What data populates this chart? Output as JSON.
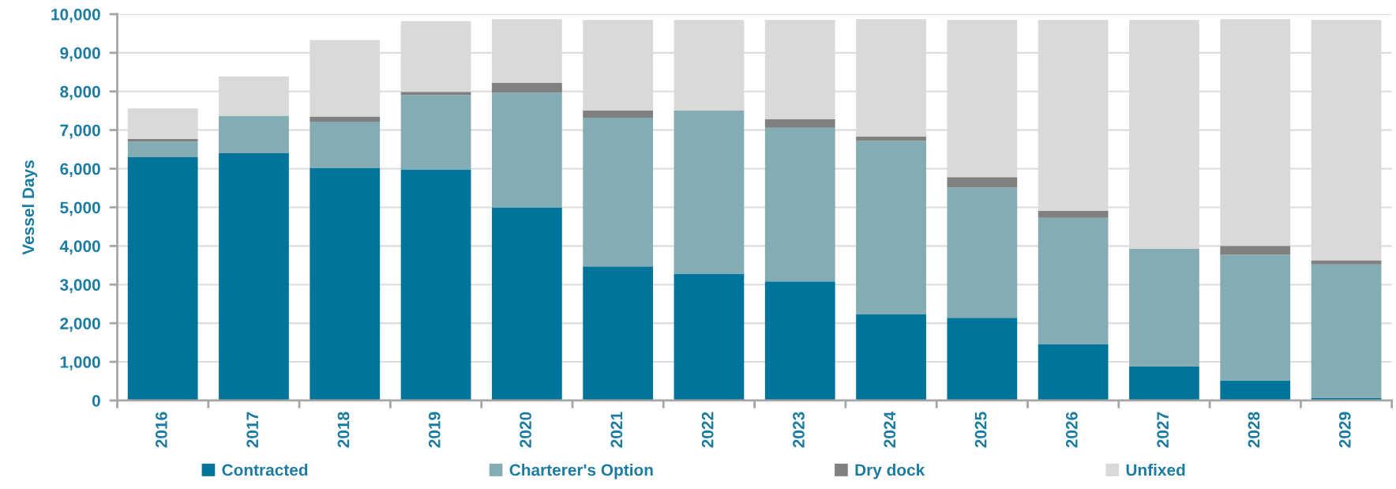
{
  "chart_data": {
    "type": "bar",
    "stacked": true,
    "ylabel": "Vessel Days",
    "categories": [
      "2016",
      "2017",
      "2018",
      "2019",
      "2020",
      "2021",
      "2022",
      "2023",
      "2024",
      "2025",
      "2026",
      "2027",
      "2028",
      "2029"
    ],
    "series": [
      {
        "name": "Contracted",
        "color": "#00749a",
        "values": [
          6300,
          6400,
          6020,
          5980,
          5000,
          3470,
          3280,
          3080,
          2240,
          2140,
          1450,
          890,
          520,
          70
        ]
      },
      {
        "name": "Charterer's Option",
        "color": "#84adb3",
        "values": [
          400,
          970,
          1200,
          1930,
          2970,
          3850,
          4230,
          3980,
          4480,
          3370,
          3280,
          3040,
          3250,
          3450
        ]
      },
      {
        "name": "Dry dock",
        "color": "#808080",
        "values": [
          70,
          null,
          130,
          80,
          250,
          190,
          null,
          220,
          110,
          270,
          180,
          null,
          230,
          110
        ]
      },
      {
        "name": "Unfixed",
        "color": "#d9d9d9",
        "values": [
          790,
          1020,
          1980,
          1830,
          1650,
          2340,
          2340,
          2570,
          3040,
          4070,
          4940,
          5920,
          5870,
          6220
        ]
      }
    ],
    "ylim": [
      0,
      10000
    ],
    "yticks": [
      0,
      {
        "value": 1000,
        "label": "1,000"
      },
      {
        "value": 2000,
        "label": "2,000"
      },
      {
        "value": 3000,
        "label": "3,000"
      },
      {
        "value": 4000,
        "label": "4,000"
      },
      {
        "value": 5000,
        "label": "5,000"
      },
      {
        "value": 6000,
        "label": "6,000"
      },
      {
        "value": 7000,
        "label": "7,000"
      },
      {
        "value": 8000,
        "label": "8,000"
      },
      {
        "value": 9000,
        "label": "9,000"
      },
      {
        "value": 10000,
        "label": "10,000"
      }
    ],
    "grid": "y",
    "legend": "bottom"
  }
}
